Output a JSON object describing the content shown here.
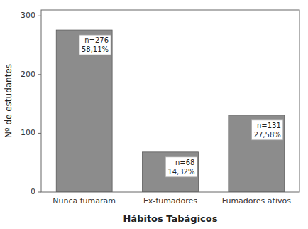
{
  "chart_data": {
    "type": "bar",
    "categories": [
      "Nunca fumaram",
      "Ex-fumadores",
      "Fumadores ativos"
    ],
    "values": [
      276,
      68,
      131
    ],
    "value_labels": [
      "n=276",
      "n=68",
      "n=131"
    ],
    "percentages": [
      58.11,
      14.32,
      27.58
    ],
    "percentage_labels": [
      "58,11%",
      "14,32%",
      "27,58%"
    ],
    "data_labels": true,
    "color": "#8c8c8c",
    "xlabel": "Hábitos Tabágicos",
    "ylabel": "Nº de estudantes",
    "ylim": [
      0,
      310
    ],
    "yticks": [
      0,
      100,
      200,
      300
    ],
    "grid": false
  }
}
